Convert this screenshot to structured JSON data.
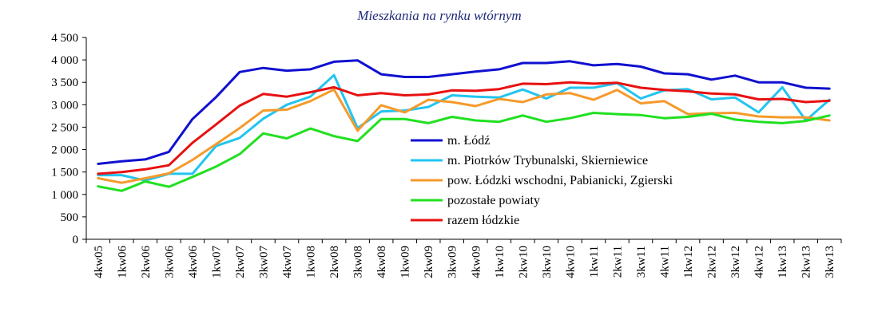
{
  "chart_data": {
    "type": "line",
    "title": "Mieszkania na rynku wtórnym",
    "xlabel": "",
    "ylabel": "",
    "categories": [
      "4kw05",
      "1kw06",
      "2kw06",
      "3kw06",
      "4kw06",
      "1kw07",
      "2kw07",
      "3kw07",
      "4kw07",
      "1kw08",
      "2kw08",
      "3kw08",
      "4kw08",
      "1kw09",
      "2kw09",
      "3kw09",
      "4kw09",
      "1kw10",
      "2kw10",
      "3kw10",
      "4kw10",
      "1kw11",
      "2kw11",
      "3kw11",
      "4kw11",
      "1kw12",
      "2kw12",
      "3kw12",
      "4kw12",
      "1kw13",
      "2kw13",
      "3kw13"
    ],
    "ylim": [
      0,
      4500
    ],
    "yticks": [
      0,
      500,
      1000,
      1500,
      2000,
      2500,
      3000,
      3500,
      4000,
      4500
    ],
    "ytick_labels": [
      "0",
      "500",
      "1 000",
      "1 500",
      "2 000",
      "2 500",
      "3 000",
      "3 500",
      "4 000",
      "4 500"
    ],
    "grid": false,
    "legend_position": "center-right",
    "series": [
      {
        "name": "m. Łódź",
        "color": "#1010d0",
        "values": [
          1680,
          1740,
          1780,
          1950,
          2680,
          3170,
          3730,
          3820,
          3760,
          3790,
          3960,
          3990,
          3680,
          3620,
          3620,
          3680,
          3740,
          3790,
          3930,
          3930,
          3970,
          3880,
          3910,
          3850,
          3700,
          3680,
          3560,
          3650,
          3500,
          3500,
          3380,
          3360
        ]
      },
      {
        "name": "m. Piotrków Trybunalski, Skierniewice",
        "color": "#22c4f0",
        "values": [
          1430,
          1430,
          1310,
          1460,
          1460,
          2080,
          2260,
          2690,
          3000,
          3180,
          3660,
          2480,
          2850,
          2870,
          2950,
          3210,
          3180,
          3160,
          3340,
          3140,
          3380,
          3380,
          3480,
          3140,
          3320,
          3350,
          3120,
          3160,
          2830,
          3390,
          2650,
          3110
        ]
      },
      {
        "name": "pow. Łódzki wschodni, Pabianicki, Zgierski",
        "color": "#f59a2a",
        "values": [
          1360,
          1260,
          1360,
          1470,
          1770,
          2120,
          2480,
          2870,
          2890,
          3080,
          3340,
          2420,
          2990,
          2830,
          3110,
          3060,
          2970,
          3130,
          3060,
          3230,
          3260,
          3110,
          3330,
          3030,
          3080,
          2790,
          2810,
          2820,
          2740,
          2720,
          2720,
          2650
        ]
      },
      {
        "name": "pozostałe powiaty",
        "color": "#20e020",
        "values": [
          1180,
          1080,
          1290,
          1170,
          1390,
          1620,
          1900,
          2360,
          2250,
          2470,
          2300,
          2190,
          2680,
          2680,
          2590,
          2730,
          2650,
          2620,
          2760,
          2620,
          2700,
          2820,
          2790,
          2770,
          2700,
          2730,
          2800,
          2670,
          2620,
          2590,
          2640,
          2760
        ]
      },
      {
        "name": "razem  łódzkie",
        "color": "#e81010",
        "values": [
          1460,
          1500,
          1560,
          1650,
          2150,
          2560,
          2980,
          3240,
          3180,
          3280,
          3390,
          3210,
          3260,
          3210,
          3230,
          3320,
          3310,
          3350,
          3470,
          3460,
          3500,
          3470,
          3490,
          3380,
          3330,
          3300,
          3250,
          3230,
          3120,
          3130,
          3060,
          3090
        ]
      }
    ]
  }
}
